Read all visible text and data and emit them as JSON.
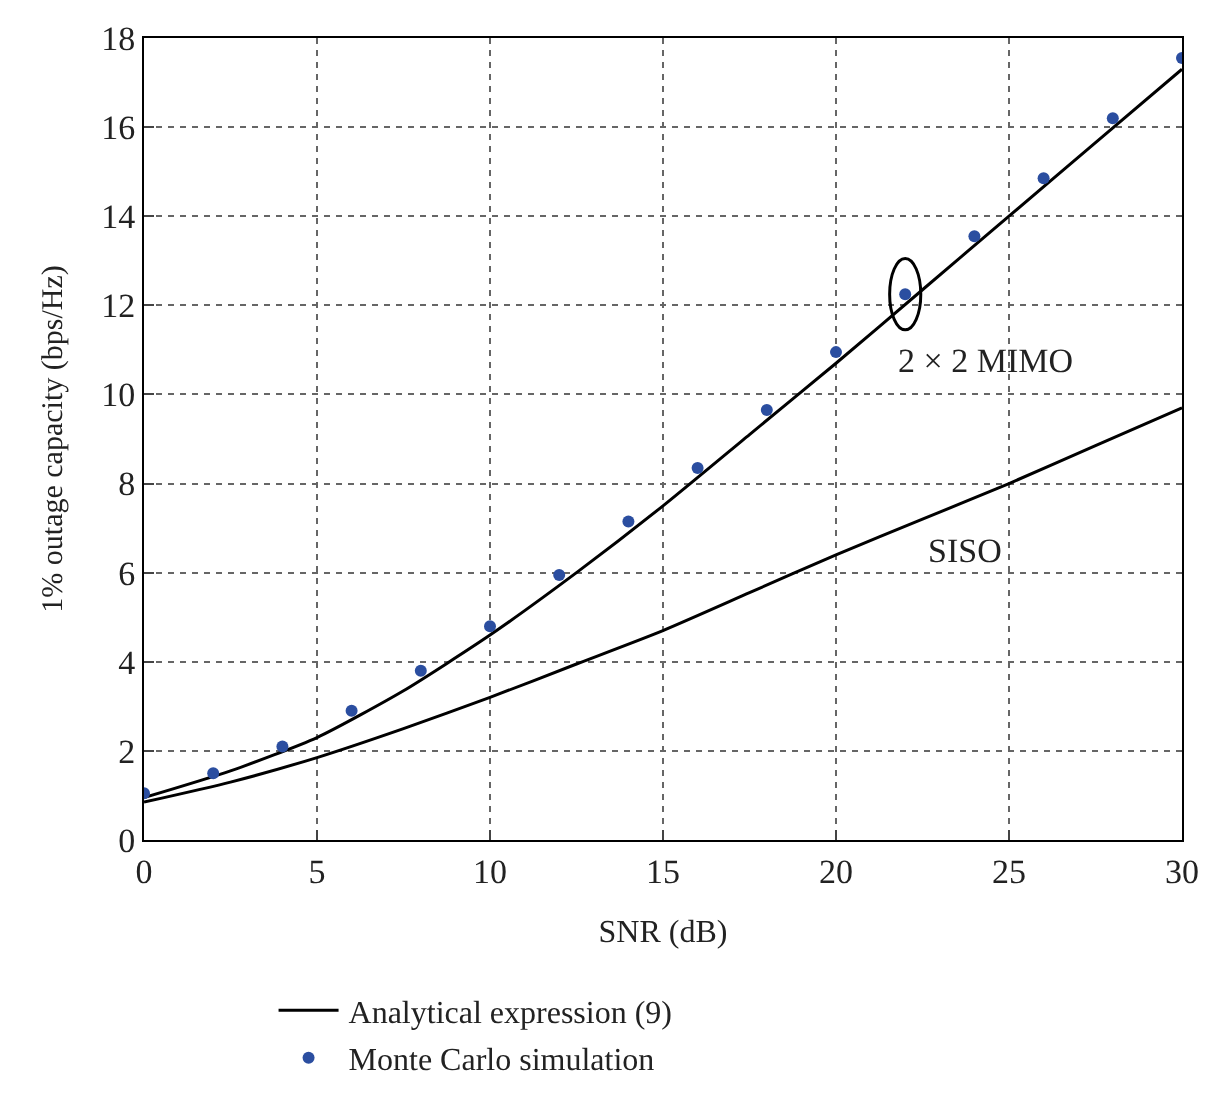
{
  "chart_data": {
    "type": "line",
    "xlabel": "SNR (dB)",
    "ylabel": "1% outage capacity (bps/Hz)",
    "xlim": [
      0,
      30
    ],
    "xticks": [
      0,
      5,
      10,
      15,
      20,
      25,
      30
    ],
    "ylim": [
      0,
      18
    ],
    "yticks": [
      0,
      2,
      4,
      6,
      8,
      10,
      12,
      14,
      16,
      18
    ],
    "grid": true,
    "legend": "bottom",
    "series": [
      {
        "name": "Analytical expression (9)",
        "color": "#000000",
        "line_style": "solid",
        "x": [
          0,
          2.5,
          5,
          7.5,
          10,
          12.5,
          15,
          17.5,
          20,
          22.5,
          25,
          27.5,
          30
        ],
        "values": [
          0.95,
          1.55,
          2.3,
          3.35,
          4.6,
          6.0,
          7.5,
          9.1,
          10.7,
          12.35,
          14.0,
          15.65,
          17.3
        ]
      },
      {
        "color": "#000000",
        "line_style": "solid",
        "x": [
          0,
          2.5,
          5,
          7.5,
          10,
          12.5,
          15,
          17.5,
          20,
          22.5,
          25,
          27.5,
          30
        ],
        "values": [
          0.85,
          1.3,
          1.85,
          2.5,
          3.2,
          3.95,
          4.7,
          5.55,
          6.4,
          7.2,
          8.0,
          8.85,
          9.7
        ]
      },
      {
        "name": "Monte Carlo simulation",
        "type": "scatter",
        "marker": "circle",
        "color": "#2b4ea0",
        "x": [
          0,
          2,
          4,
          6,
          8,
          10,
          12,
          14,
          16,
          18,
          20,
          22,
          24,
          26,
          28,
          30
        ],
        "values": [
          1.05,
          1.5,
          2.1,
          2.9,
          3.8,
          4.8,
          5.95,
          7.15,
          8.35,
          9.65,
          10.95,
          12.25,
          13.55,
          14.85,
          16.2,
          17.55
        ]
      }
    ],
    "annotations": [
      {
        "text": "2 × 2 MIMO",
        "x": 22,
        "y": 12.25
      },
      "SISO"
    ]
  }
}
